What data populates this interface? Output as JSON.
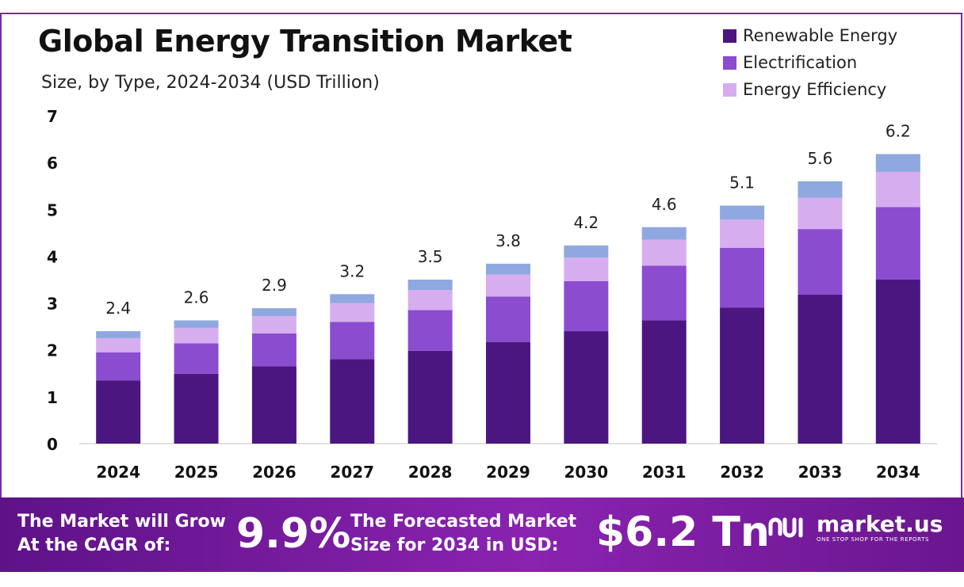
{
  "chart_data": {
    "type": "bar",
    "stacked": true,
    "title": "Global Energy Transition Market",
    "subtitle": "Size, by Type, 2024-2034 (USD Trillion)",
    "categories": [
      "2024",
      "2025",
      "2026",
      "2027",
      "2028",
      "2029",
      "2030",
      "2031",
      "2032",
      "2033",
      "2034"
    ],
    "totals": [
      2.4,
      2.6,
      2.9,
      3.2,
      3.5,
      3.8,
      4.2,
      4.6,
      5.1,
      5.6,
      6.2
    ],
    "total_labels": [
      "2.4",
      "2.6",
      "2.9",
      "3.2",
      "3.5",
      "3.8",
      "4.2",
      "4.6",
      "5.1",
      "5.6",
      "6.2"
    ],
    "series": [
      {
        "name": "Renewable Energy",
        "color": "#4b1680",
        "values": [
          1.35,
          1.49,
          1.65,
          1.8,
          1.98,
          2.17,
          2.4,
          2.63,
          2.9,
          3.18,
          3.5
        ]
      },
      {
        "name": "Electrification",
        "color": "#8b4ccf",
        "values": [
          0.6,
          0.65,
          0.7,
          0.8,
          0.87,
          0.97,
          1.07,
          1.17,
          1.28,
          1.4,
          1.55
        ]
      },
      {
        "name": "Energy Efficiency",
        "color": "#d6aeef",
        "values": [
          0.3,
          0.33,
          0.37,
          0.4,
          0.43,
          0.47,
          0.5,
          0.55,
          0.6,
          0.67,
          0.75
        ]
      },
      {
        "name": "",
        "color": "#8fa8e0",
        "values": [
          0.15,
          0.16,
          0.17,
          0.19,
          0.22,
          0.23,
          0.26,
          0.27,
          0.3,
          0.35,
          0.38
        ]
      }
    ],
    "ylim": [
      0,
      7
    ],
    "yticks": [
      "0",
      "1",
      "2",
      "3",
      "4",
      "5",
      "6",
      "7"
    ],
    "grid": false,
    "legend_position": "top-right"
  },
  "banner": {
    "cagr_line1": "The Market will Grow",
    "cagr_line2": "At the CAGR of:",
    "cagr_value": "9.9%",
    "forecast_line1": "The Forecasted Market",
    "forecast_line2": "Size for 2034 in USD:",
    "forecast_value": "$6.2 Tn",
    "brand_name": "market.us",
    "brand_tagline": "ONE STOP SHOP FOR THE REPORTS"
  }
}
